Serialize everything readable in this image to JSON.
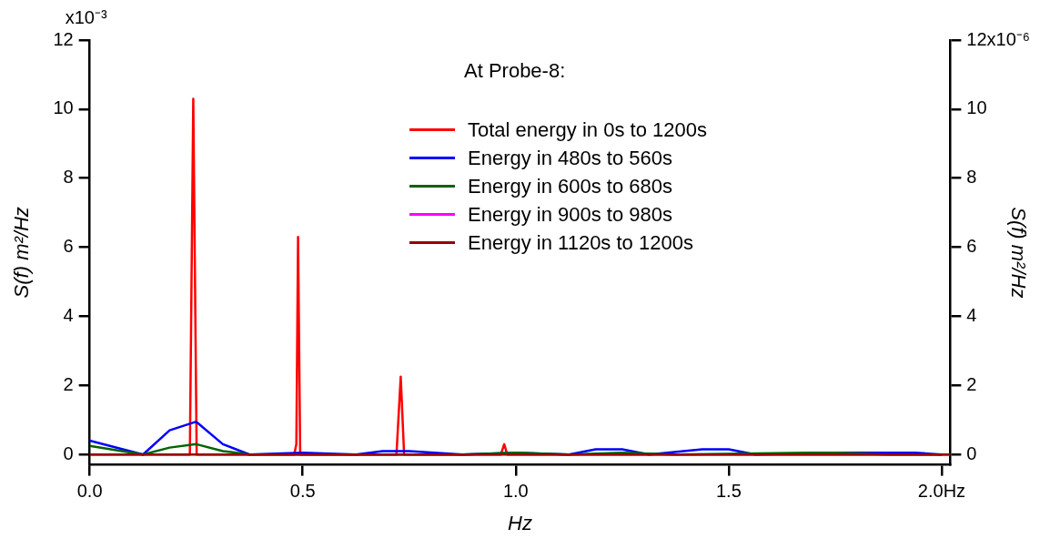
{
  "chart_data": {
    "type": "line",
    "xlabel": "Hz",
    "ylabel": "S(f) m²/Hz",
    "y2label": "S(f) m²/Hz",
    "legend_title": "At Probe-8:",
    "legend": "top",
    "grid": false,
    "marker": "none",
    "line_style": "solid",
    "annotations": [
      "x10⁻³",
      "x10⁻⁶"
    ],
    "xlim": [
      0,
      2.02
    ],
    "xticks": [
      {
        "value": 0,
        "label": "0.0"
      },
      0.5,
      {
        "value": 1,
        "label": "1.0"
      },
      1.5,
      {
        "value": 2,
        "label": "2.0Hz"
      }
    ],
    "ylim": [
      -0.3,
      12
    ],
    "yticks": [
      0,
      2,
      4,
      6,
      8,
      10,
      12
    ],
    "y2lim": [
      -0.3,
      12
    ],
    "y2ticks": [
      0,
      2,
      4,
      6,
      8,
      10,
      12
    ],
    "series": [
      {
        "name": "Total energy in 0s to 1200s",
        "color": "#ff0000",
        "x": [
          0,
          0.235,
          0.243,
          0.251,
          0.48,
          0.485,
          0.489,
          0.494,
          0.72,
          0.73,
          0.738,
          0.965,
          0.973,
          0.98,
          2.02
        ],
        "values": [
          0,
          0,
          10.3,
          0,
          0,
          0.3,
          6.3,
          0,
          0,
          2.25,
          0,
          0,
          0.3,
          0,
          0
        ]
      },
      {
        "name": "Energy in 480s to 560s",
        "color": "#0000ff",
        "x": [
          0,
          0.125,
          0.1875,
          0.25,
          0.3125,
          0.375,
          0.5,
          0.625,
          0.6875,
          0.75,
          0.875,
          1,
          1.125,
          1.1875,
          1.25,
          1.3125,
          1.4375,
          1.5,
          1.5625,
          1.75,
          1.9375,
          2.0
        ],
        "values": [
          0.4,
          0,
          0.7,
          0.95,
          0.3,
          0,
          0.05,
          0,
          0.1,
          0.1,
          0,
          0.05,
          0,
          0.15,
          0.15,
          0,
          0.15,
          0.15,
          0,
          0.05,
          0.05,
          0
        ]
      },
      {
        "name": "Energy in 600s to 680s",
        "color": "#006400",
        "x": [
          0,
          0.125,
          0.1875,
          0.25,
          0.3125,
          0.375,
          0.875,
          1,
          1.125,
          1.25,
          1.375,
          1.6875,
          1.75,
          1.875,
          2.0
        ],
        "values": [
          0.25,
          0,
          0.2,
          0.3,
          0.1,
          0,
          0,
          0.05,
          0,
          0.05,
          0,
          0.05,
          0.05,
          0,
          0
        ]
      },
      {
        "name": "Energy in 900s to 980s",
        "color": "#ff00ff"
      },
      {
        "name": "Energy in 1120s to 1200s",
        "color": "#990000",
        "x": [
          0,
          2.02
        ],
        "values": [
          0,
          0
        ]
      }
    ]
  }
}
